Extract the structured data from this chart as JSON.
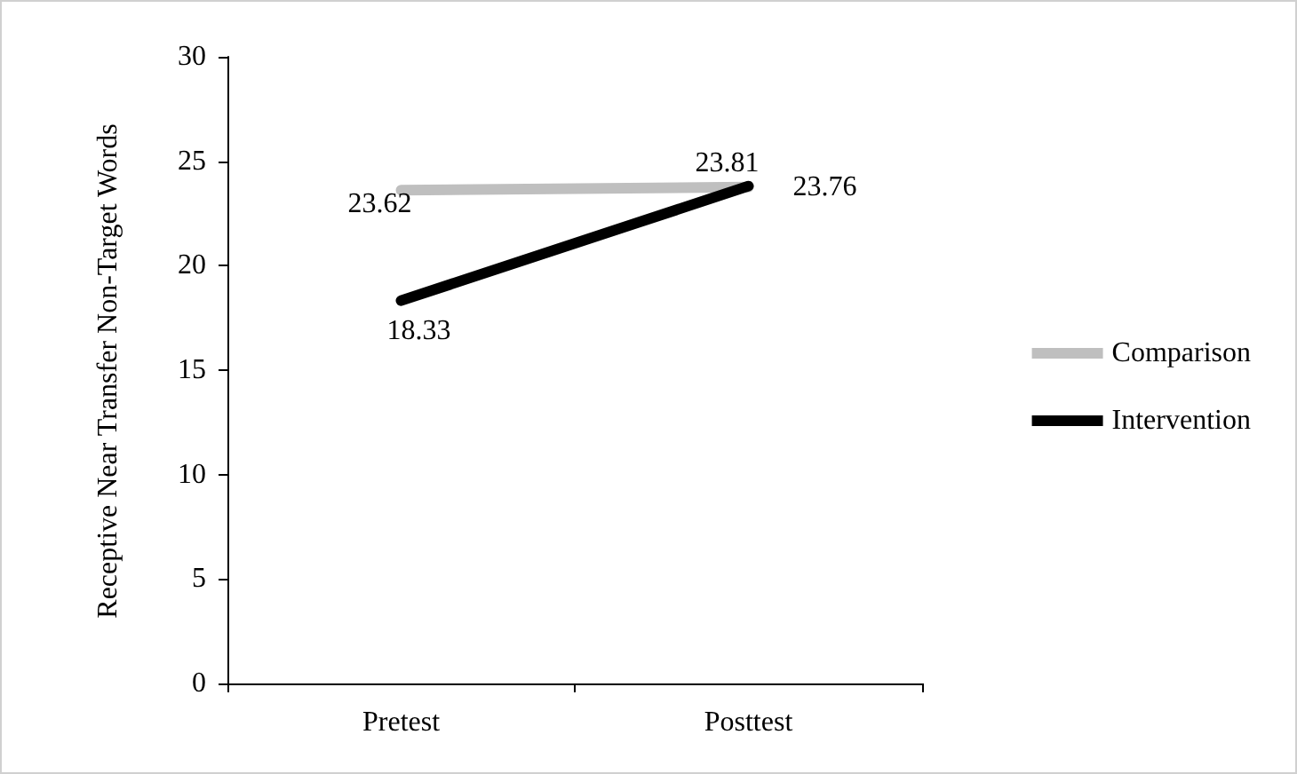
{
  "chart_data": {
    "type": "line",
    "ylabel": "Receptive Near Transfer Non-Target Words",
    "categories": [
      "Pretest",
      "Posttest"
    ],
    "series": [
      {
        "name": "Comparison",
        "color": "#bfbfbf",
        "values": [
          23.62,
          23.76
        ]
      },
      {
        "name": "Intervention",
        "color": "#000000",
        "values": [
          18.33,
          23.81
        ]
      }
    ],
    "ylim": [
      0,
      30
    ],
    "yticks": [
      0,
      5,
      10,
      15,
      20,
      25,
      30
    ],
    "grid": false,
    "legend": "right",
    "marker": "none",
    "line_style": "solid",
    "data_labels": true
  }
}
